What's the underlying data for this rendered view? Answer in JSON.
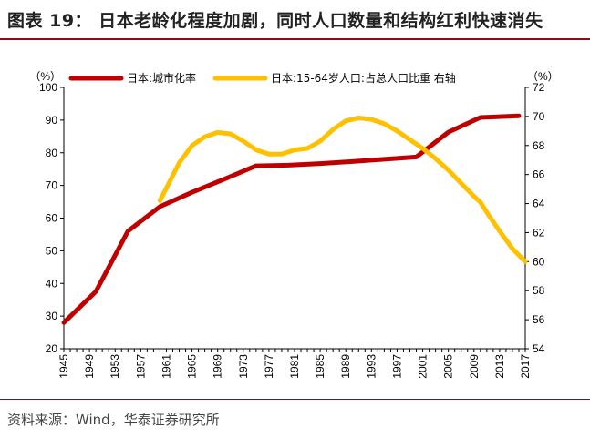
{
  "title": "图表 19：   日本老龄化程度加剧，同时人口数量和结构红利快速消失",
  "source": "资料来源：Wind，华泰证券研究所",
  "chart_data": {
    "type": "line",
    "left_unit": "（%）",
    "right_unit": "（%）",
    "left_ylim": [
      20,
      100
    ],
    "left_ticks": [
      20,
      30,
      40,
      50,
      60,
      70,
      80,
      90,
      100
    ],
    "right_ylim": [
      54,
      72
    ],
    "right_ticks": [
      54,
      56,
      58,
      60,
      62,
      64,
      66,
      68,
      70,
      72
    ],
    "xlim": [
      1945,
      2017
    ],
    "x_ticks": [
      "1945",
      "1949",
      "1953",
      "1957",
      "1961",
      "1965",
      "1969",
      "1973",
      "1977",
      "1981",
      "1985",
      "1989",
      "1993",
      "1997",
      "2001",
      "2005",
      "2009",
      "2013",
      "2017"
    ],
    "grid": false,
    "legend_position": "top",
    "series": [
      {
        "name": "日本:城市化率",
        "axis": "left",
        "color": "#c00000",
        "x": [
          1945,
          1950,
          1955,
          1960,
          1965,
          1970,
          1975,
          1980,
          1985,
          1990,
          1995,
          2000,
          2005,
          2010,
          2016
        ],
        "y": [
          28,
          37.5,
          56,
          63.5,
          67.9,
          71.9,
          76,
          76.2,
          76.7,
          77.3,
          78,
          78.7,
          86.3,
          90.8,
          91.3
        ]
      },
      {
        "name": "日本:15-64岁人口:占总人口比重 右轴",
        "axis": "right",
        "color": "#ffc000",
        "x": [
          1960,
          1963,
          1965,
          1967,
          1969,
          1971,
          1973,
          1975,
          1977,
          1979,
          1981,
          1983,
          1985,
          1987,
          1989,
          1991,
          1993,
          1995,
          1997,
          1999,
          2001,
          2003,
          2005,
          2007,
          2009,
          2010,
          2011,
          2013,
          2015,
          2017
        ],
        "y": [
          64.2,
          66.8,
          68.0,
          68.6,
          68.9,
          68.8,
          68.3,
          67.7,
          67.4,
          67.4,
          67.7,
          67.8,
          68.3,
          69.1,
          69.7,
          69.9,
          69.8,
          69.5,
          69.0,
          68.4,
          67.8,
          67.1,
          66.3,
          65.4,
          64.5,
          64.1,
          63.4,
          62.1,
          60.9,
          60.0
        ]
      }
    ]
  }
}
